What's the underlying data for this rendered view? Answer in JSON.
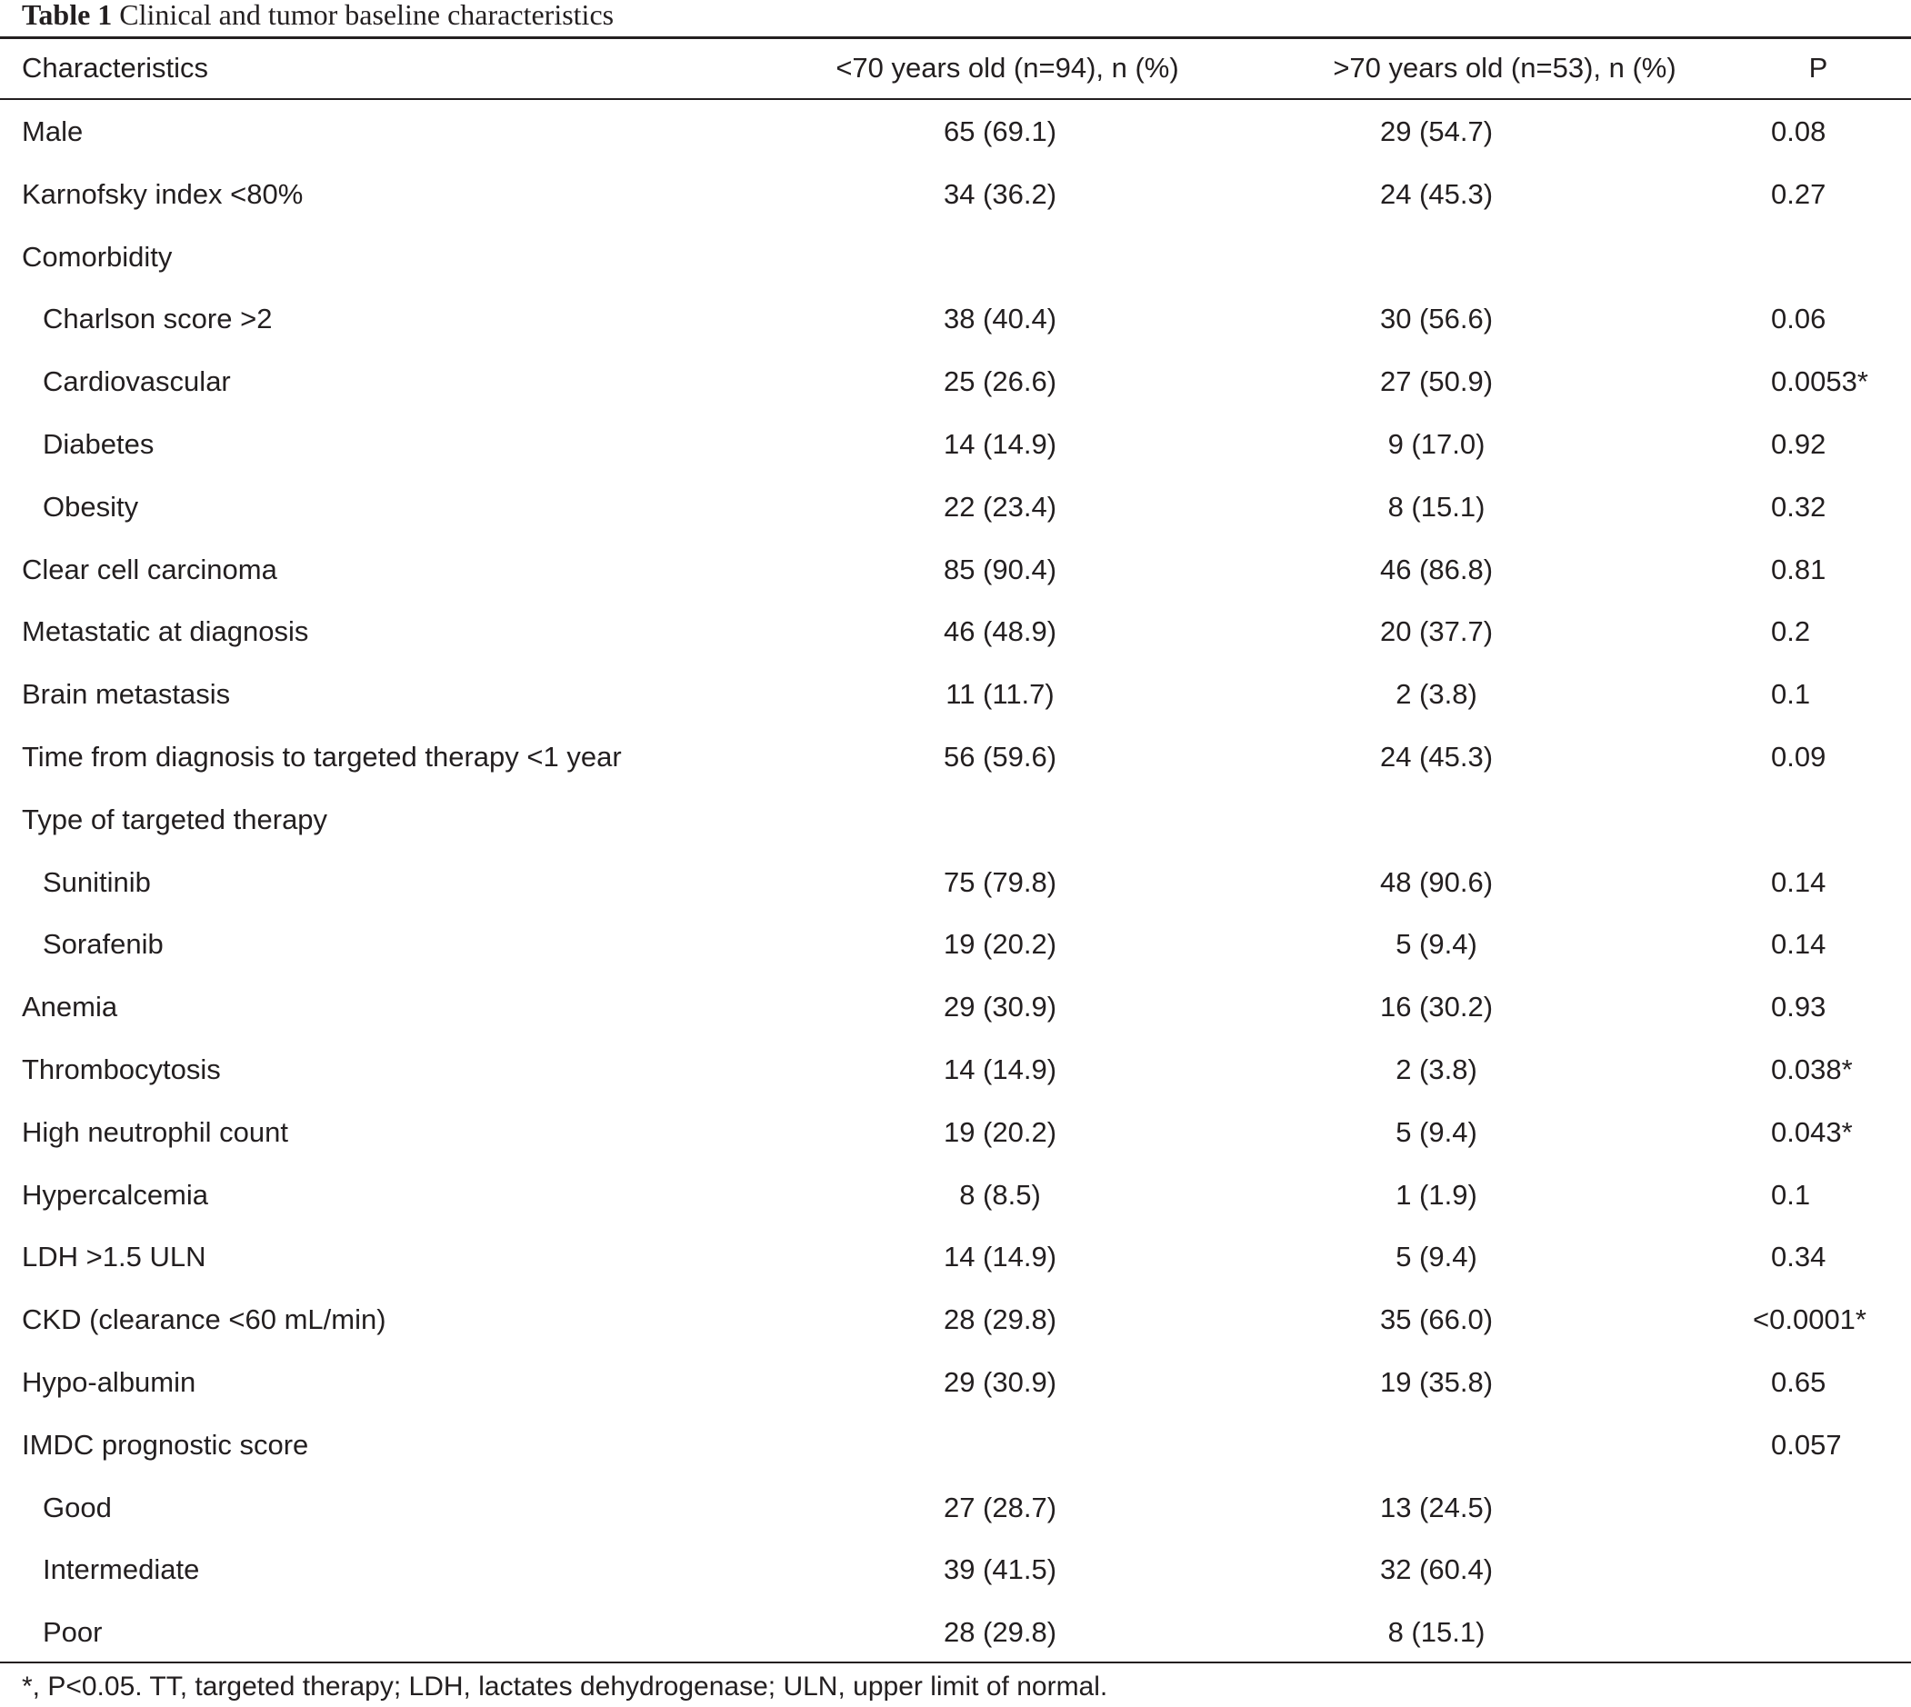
{
  "caption": {
    "label": "Table 1",
    "text": "Clinical and tumor baseline characteristics"
  },
  "header": {
    "characteristics": "Characteristics",
    "young": "<70 years old (n=94), n (%)",
    "old": ">70 years old (n=53), n (%)",
    "p": "P"
  },
  "rows": [
    {
      "label": "Male",
      "young": "65 (69.1)",
      "old": "29 (54.7)",
      "p": "0.08"
    },
    {
      "label": "Karnofsky index <80%",
      "young": "34 (36.2)",
      "old": "24 (45.3)",
      "p": "0.27"
    },
    {
      "label": "Comorbidity",
      "young": "",
      "old": "",
      "p": ""
    },
    {
      "label": "Charlson score >2",
      "young": "38 (40.4)",
      "old": "30 (56.6)",
      "p": "0.06"
    },
    {
      "label": "Cardiovascular",
      "young": "25 (26.6)",
      "old": "27 (50.9)",
      "p": "0.0053*"
    },
    {
      "label": "Diabetes",
      "young": "14 (14.9)",
      "old": "9 (17.0)",
      "p": "0.92"
    },
    {
      "label": "Obesity",
      "young": "22 (23.4)",
      "old": "8 (15.1)",
      "p": "0.32"
    },
    {
      "label": "Clear cell carcinoma",
      "young": "85 (90.4)",
      "old": "46 (86.8)",
      "p": "0.81"
    },
    {
      "label": "Metastatic at diagnosis",
      "young": "46 (48.9)",
      "old": "20 (37.7)",
      "p": "0.2"
    },
    {
      "label": "Brain metastasis",
      "young": "11 (11.7)",
      "old": "2 (3.8)",
      "p": "0.1"
    },
    {
      "label": "Time from diagnosis to targeted therapy <1 year",
      "young": "56 (59.6)",
      "old": "24 (45.3)",
      "p": "0.09"
    },
    {
      "label": "Type of targeted therapy",
      "young": "",
      "old": "",
      "p": ""
    },
    {
      "label": "Sunitinib",
      "young": "75 (79.8)",
      "old": "48 (90.6)",
      "p": "0.14"
    },
    {
      "label": "Sorafenib",
      "young": "19 (20.2)",
      "old": "5 (9.4)",
      "p": "0.14"
    },
    {
      "label": "Anemia",
      "young": "29 (30.9)",
      "old": "16 (30.2)",
      "p": "0.93"
    },
    {
      "label": "Thrombocytosis",
      "young": "14 (14.9)",
      "old": "2 (3.8)",
      "p": "0.038*"
    },
    {
      "label": "High neutrophil count",
      "young": "19 (20.2)",
      "old": "5 (9.4)",
      "p": "0.043*"
    },
    {
      "label": "Hypercalcemia",
      "young": "8 (8.5)",
      "old": "1 (1.9)",
      "p": "0.1"
    },
    {
      "label": "LDH >1.5 ULN",
      "young": "14 (14.9)",
      "old": "5 (9.4)",
      "p": "0.34"
    },
    {
      "label": "CKD (clearance <60 mL/min)",
      "young": "28 (29.8)",
      "old": "35 (66.0)",
      "p": "<0.0001*"
    },
    {
      "label": "Hypo-albumin",
      "young": "29 (30.9)",
      "old": "19 (35.8)",
      "p": "0.65"
    },
    {
      "label": "IMDC prognostic score",
      "young": "",
      "old": "",
      "p": "0.057"
    },
    {
      "label": "Good",
      "young": "27 (28.7)",
      "old": "13 (24.5)",
      "p": ""
    },
    {
      "label": "Intermediate",
      "young": "39 (41.5)",
      "old": "32 (60.4)",
      "p": ""
    },
    {
      "label": "Poor",
      "young": "28 (29.8)",
      "old": "8 (15.1)",
      "p": ""
    }
  ],
  "footnote": "*, P<0.05. TT, targeted therapy; LDH, lactates dehydrogenase; ULN, upper limit of normal."
}
